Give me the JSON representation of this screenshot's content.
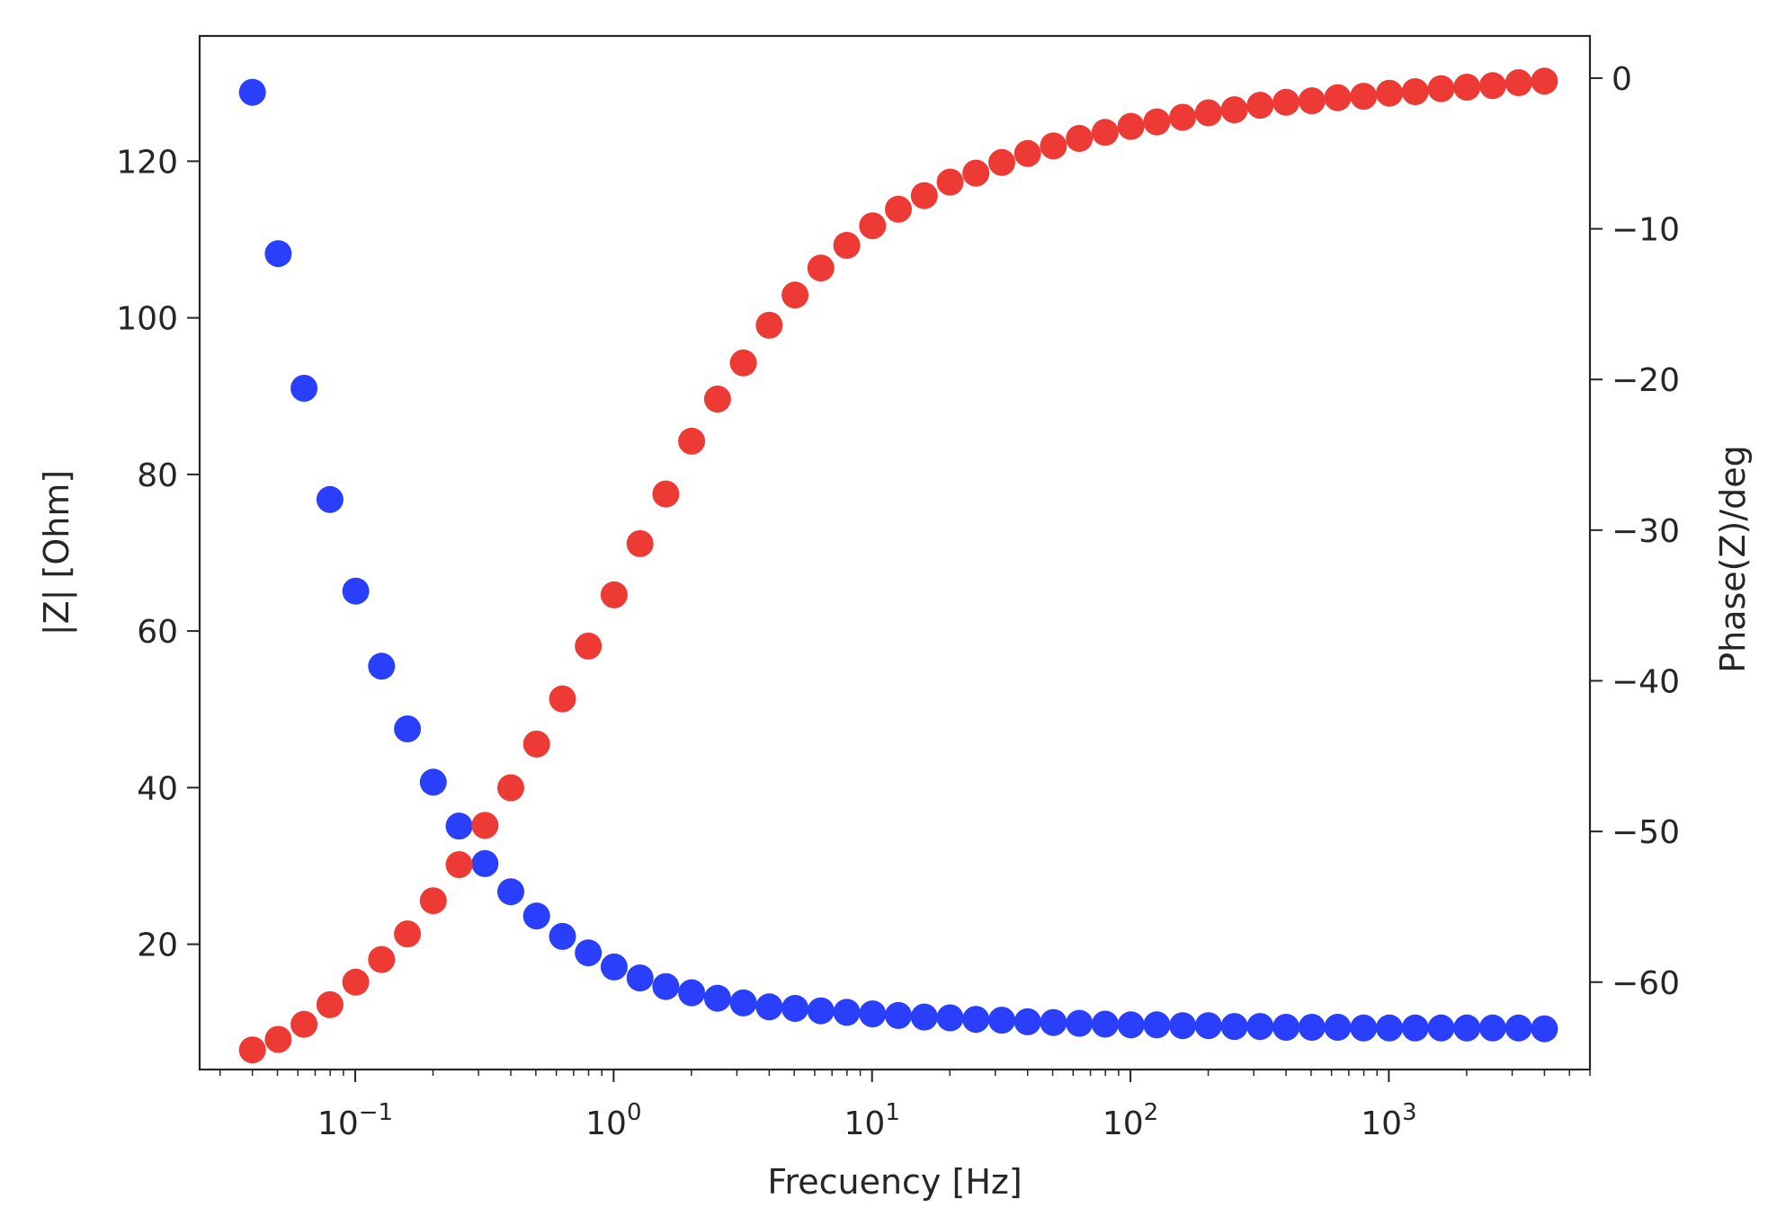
{
  "chart_data": {
    "type": "scatter",
    "title": "",
    "xlabel": "Frecuency [Hz]",
    "ylabel": "|Z| [Ohm]",
    "y2label": "Phase(Z)/deg",
    "xscale": "log",
    "xlim": [
      0.025,
      6000
    ],
    "ylim": [
      4,
      136
    ],
    "y2lim": [
      -65.8,
      2.8
    ],
    "grid": false,
    "legend": "none",
    "xticks": [
      0.1,
      1,
      10,
      100,
      1000
    ],
    "xtick_labels": [
      {
        "base": "10",
        "exp": "−1"
      },
      {
        "base": "10",
        "exp": "0"
      },
      {
        "base": "10",
        "exp": "1"
      },
      {
        "base": "10",
        "exp": "2"
      },
      {
        "base": "10",
        "exp": "3"
      }
    ],
    "yticks": [
      20,
      40,
      60,
      80,
      100,
      120
    ],
    "ytick_labels": [
      "20",
      "40",
      "60",
      "80",
      "100",
      "120"
    ],
    "y2ticks": [
      0,
      -10,
      -20,
      -30,
      -40,
      -50,
      -60
    ],
    "y2tick_labels": [
      "0",
      "−10",
      "−20",
      "−30",
      "−40",
      "−50",
      "−60"
    ],
    "x_start": 0.04,
    "points_per_decade": 10,
    "series": [
      {
        "axis": "left",
        "color": "#2a3ffb",
        "values": [
          128.8,
          108.2,
          91.0,
          76.8,
          65.1,
          55.5,
          47.5,
          40.7,
          35.1,
          30.3,
          26.7,
          23.6,
          21.0,
          18.9,
          17.1,
          15.7,
          14.6,
          13.8,
          13.1,
          12.5,
          12.0,
          11.8,
          11.5,
          11.3,
          11.1,
          10.9,
          10.7,
          10.6,
          10.4,
          10.3,
          10.1,
          10.0,
          9.9,
          9.8,
          9.7,
          9.7,
          9.6,
          9.6,
          9.5,
          9.5,
          9.4,
          9.4,
          9.4,
          9.3,
          9.3,
          9.3,
          9.3,
          9.3,
          9.3,
          9.3,
          9.2
        ]
      },
      {
        "axis": "right",
        "color": "#ee3a35",
        "values": [
          -64.5,
          -63.8,
          -62.8,
          -61.5,
          -60.0,
          -58.5,
          -56.8,
          -54.6,
          -52.2,
          -49.6,
          -47.1,
          -44.2,
          -41.2,
          -37.7,
          -34.3,
          -30.9,
          -27.6,
          -24.1,
          -21.3,
          -18.9,
          -16.4,
          -14.4,
          -12.6,
          -11.1,
          -9.8,
          -8.7,
          -7.8,
          -6.9,
          -6.3,
          -5.6,
          -5.0,
          -4.5,
          -4.0,
          -3.6,
          -3.2,
          -2.9,
          -2.6,
          -2.3,
          -2.1,
          -1.8,
          -1.6,
          -1.5,
          -1.3,
          -1.2,
          -1.0,
          -0.9,
          -0.7,
          -0.6,
          -0.5,
          -0.3,
          -0.2
        ]
      }
    ]
  }
}
